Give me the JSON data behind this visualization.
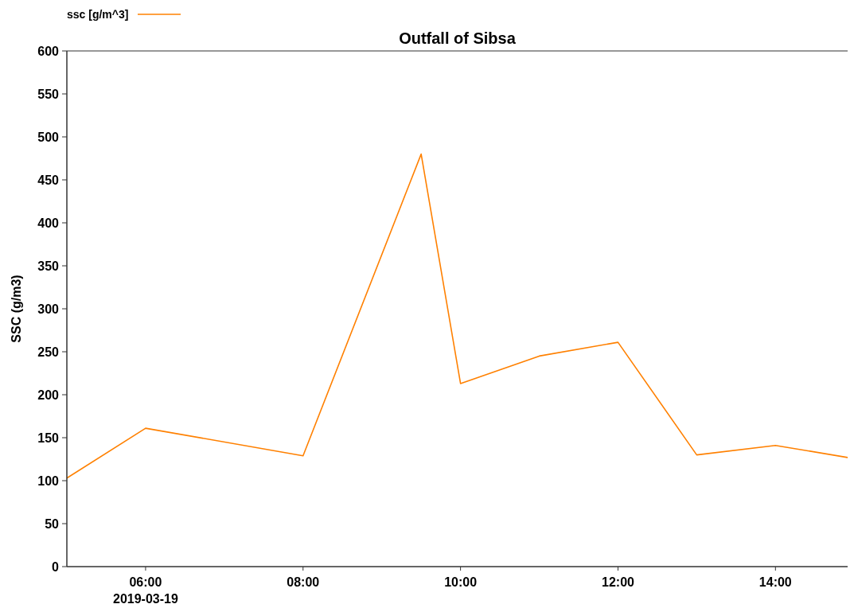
{
  "chart_data": {
    "type": "line",
    "title": "Outfall of Sibsa",
    "ylabel": "SSC (g/m3)",
    "x": [
      "2019-03-19T05:00",
      "2019-03-19T06:00",
      "2019-03-19T08:00",
      "2019-03-19T09:30",
      "2019-03-19T10:00",
      "2019-03-19T11:00",
      "2019-03-19T12:00",
      "2019-03-19T13:00",
      "2019-03-19T14:00",
      "2019-03-19T14:55"
    ],
    "series": [
      {
        "name": "ssc [g/m^3]",
        "color": "#ff8000",
        "values": [
          103,
          161,
          129,
          480,
          213,
          245,
          261,
          130,
          141,
          127
        ]
      }
    ],
    "xlim": [
      "2019-03-19T05:00",
      "2019-03-19T14:55"
    ],
    "xticks": [
      {
        "value": "2019-03-19T06:00",
        "label": "06:00\n2019-03-19"
      },
      {
        "value": "2019-03-19T08:00",
        "label": "08:00"
      },
      {
        "value": "2019-03-19T10:00",
        "label": "10:00"
      },
      {
        "value": "2019-03-19T12:00",
        "label": "12:00"
      },
      {
        "value": "2019-03-19T14:00",
        "label": "14:00"
      }
    ],
    "ylim": [
      0,
      600
    ],
    "yticks": [
      0,
      50,
      100,
      150,
      200,
      250,
      300,
      350,
      400,
      450,
      500,
      550,
      600
    ],
    "legend": "top left",
    "marker": "none",
    "line_style": "solid"
  }
}
